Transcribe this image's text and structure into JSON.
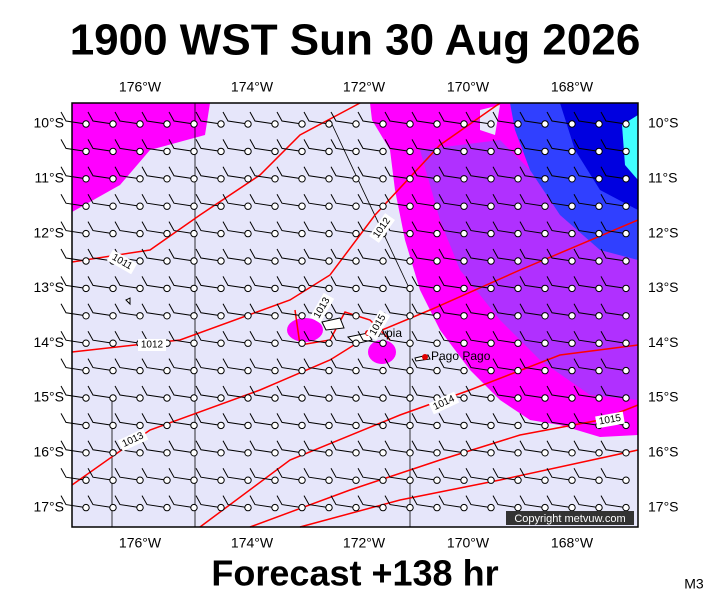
{
  "header": {
    "title": "1900 WST Sun 30 Aug 2026"
  },
  "map": {
    "longitudes": [
      "176°W",
      "174°W",
      "172°W",
      "170°W",
      "168°W"
    ],
    "latitudes": [
      "10°S",
      "11°S",
      "12°S",
      "13°S",
      "14°S",
      "15°S",
      "16°S",
      "17°S"
    ],
    "isobar_labels": [
      "1011",
      "1012",
      "1013",
      "1012",
      "1015",
      "1013",
      "1014",
      "1015"
    ],
    "places": [
      "Apia",
      "Pago Pago"
    ],
    "copyright": "Copyright metvuw.com"
  },
  "footer": {
    "forecast": "Forecast +138 hr",
    "code": "M3"
  }
}
